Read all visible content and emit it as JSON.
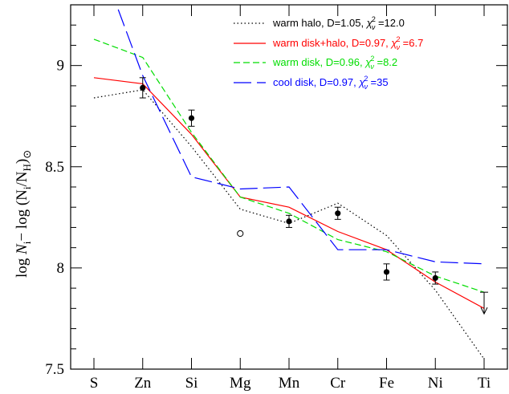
{
  "chart_data": {
    "type": "line",
    "ylabel": "log N_i − log (N_i/N_H)_⊙",
    "xlabel": "",
    "categories": [
      "S",
      "Zn",
      "Si",
      "Mg",
      "Mn",
      "Cr",
      "Fe",
      "Ni",
      "Ti"
    ],
    "ylim": [
      7.5,
      9.3
    ],
    "yticks": [
      7.5,
      8,
      8.5,
      9
    ],
    "ytick_labels": [
      "7.5",
      "8",
      "8.5",
      "9"
    ],
    "series": [
      {
        "name": "warm halo, D=1.05, χ²_ν =12.0",
        "legend_prefix": "warm halo, D=1.05, ",
        "legend_suffix": " =12.0",
        "color": "#000000",
        "style": "dotted",
        "values": [
          8.84,
          8.88,
          8.6,
          8.29,
          8.22,
          8.32,
          8.16,
          7.89,
          7.55
        ]
      },
      {
        "name": "warm disk+halo, D=0.97, χ²_ν =6.7",
        "legend_prefix": "warm disk+halo, D=0.97, ",
        "legend_suffix": " =6.7",
        "color": "#ff0000",
        "style": "solid",
        "values": [
          8.94,
          8.91,
          8.66,
          8.35,
          8.3,
          8.18,
          8.09,
          7.93,
          7.8
        ]
      },
      {
        "name": "warm disk, D=0.96, χ²_ν =8.2",
        "legend_prefix": "warm disk, D=0.96, ",
        "legend_suffix": " =8.2",
        "color": "#00dd00",
        "style": "dashed",
        "values": [
          9.13,
          9.04,
          8.67,
          8.35,
          8.27,
          8.14,
          8.08,
          7.96,
          7.88
        ]
      },
      {
        "name": "cool disk, D=0.97, χ²_ν =35",
        "legend_prefix": "cool disk, D=0.97, ",
        "legend_suffix": " =35",
        "color": "#0000ff",
        "style": "longdash",
        "values": [
          9.6,
          8.95,
          8.45,
          8.39,
          8.4,
          8.09,
          8.09,
          8.03,
          8.02
        ]
      }
    ],
    "observations": [
      {
        "x": "Zn",
        "y": 8.89,
        "err": 0.05
      },
      {
        "x": "Si",
        "y": 8.74,
        "err": 0.04
      },
      {
        "x": "Mn",
        "y": 8.23,
        "err": 0.03
      },
      {
        "x": "Cr",
        "y": 8.27,
        "err": 0.03
      },
      {
        "x": "Fe",
        "y": 7.98,
        "err": 0.04
      },
      {
        "x": "Ni",
        "y": 7.95,
        "err": 0.03
      }
    ],
    "open_points": [
      {
        "x": "Mg",
        "y": 8.17
      }
    ],
    "upper_limits": [
      {
        "x": "Ti",
        "y": 7.88
      }
    ],
    "legend_position": "top-right",
    "grid": false
  }
}
